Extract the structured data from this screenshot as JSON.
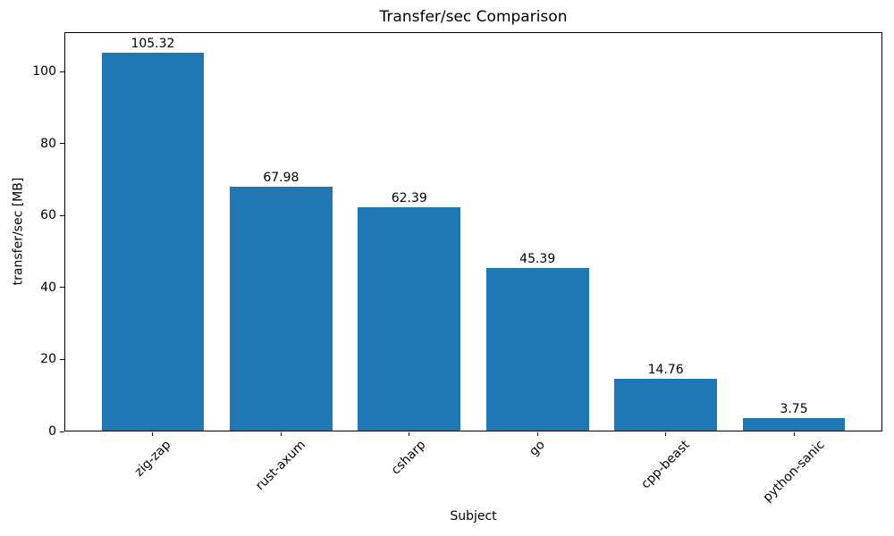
{
  "chart_data": {
    "type": "bar",
    "title": "Transfer/sec Comparison",
    "xlabel": "Subject",
    "ylabel": "transfer/sec [MB]",
    "categories": [
      "zig-zap",
      "rust-axum",
      "csharp",
      "go",
      "cpp-beast",
      "python-sanic"
    ],
    "values": [
      105.32,
      67.98,
      62.39,
      45.39,
      14.76,
      3.75
    ],
    "bar_value_labels": [
      "105.32",
      "67.98",
      "62.39",
      "45.39",
      "14.76",
      "3.75"
    ],
    "yticks": [
      0,
      20,
      40,
      60,
      80,
      100
    ],
    "ylim": [
      0,
      111
    ],
    "bar_color": "#1f77b4",
    "axis_color": "#000000",
    "text_color": "#000000",
    "background_color": "#ffffff",
    "bar_width_fraction": 0.8,
    "x_tick_rotation_deg": 45,
    "grid": false,
    "legend_position": "none"
  }
}
